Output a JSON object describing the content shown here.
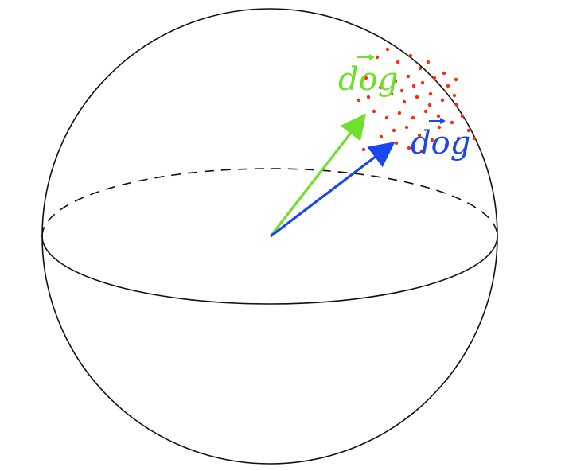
{
  "labels": {
    "green_vector": "dog",
    "blue_vector": "dog"
  },
  "colors": {
    "sphere_outline": "#111111",
    "green_vector": "#6ee02a",
    "blue_vector": "#1a46f0",
    "point_cloud": "#ff2a10",
    "background": "#ffffff"
  }
}
